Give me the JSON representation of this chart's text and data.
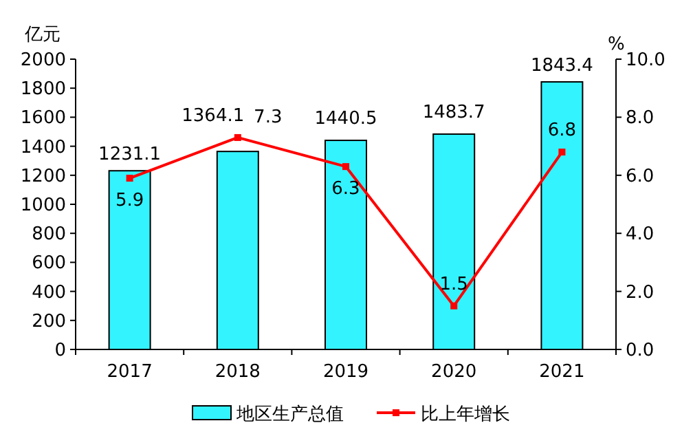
{
  "chart_data": {
    "type": "bar",
    "categories": [
      "2017",
      "2018",
      "2019",
      "2020",
      "2021"
    ],
    "series": [
      {
        "name": "地区生产总值",
        "color": "#33f3ff",
        "values": [
          1231.1,
          1364.1,
          1440.5,
          1483.7,
          1843.4
        ]
      },
      {
        "name": "比上年增长",
        "type": "line",
        "axis": "y2",
        "color": "#ff0000",
        "marker": "square",
        "values": [
          5.9,
          7.3,
          6.3,
          1.5,
          6.8
        ]
      }
    ],
    "ylabel": "亿元",
    "y2label": "%",
    "ylim": [
      0,
      2000
    ],
    "yticks": [
      0,
      200,
      400,
      600,
      800,
      1000,
      1200,
      1400,
      1600,
      1800,
      2000
    ],
    "y2lim": [
      0,
      10
    ],
    "y2ticks": [
      {
        "value": 0,
        "label": "0.0"
      },
      {
        "value": 2,
        "label": "2.0"
      },
      {
        "value": 4,
        "label": "4.0"
      },
      {
        "value": 6,
        "label": "6.0"
      },
      {
        "value": 8,
        "label": "8.0"
      },
      {
        "value": 10,
        "label": "10.0"
      }
    ],
    "data_labels": true,
    "legend": "bottom",
    "grid": false
  }
}
